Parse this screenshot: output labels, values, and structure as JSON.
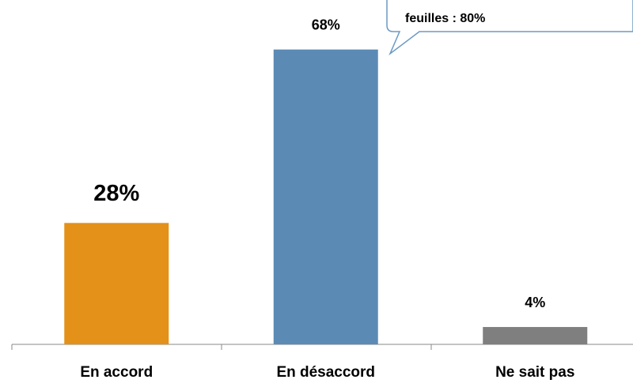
{
  "chart_data": {
    "type": "bar",
    "categories": [
      "En accord",
      "En désaccord",
      "Ne sait pas"
    ],
    "values": [
      28,
      68,
      4
    ],
    "value_labels": [
      "28%",
      "68%",
      "4%"
    ],
    "colors": [
      "#e39119",
      "#5b8bb5",
      "#7f7f7f"
    ],
    "annotation": "feuilles  : 80%"
  }
}
